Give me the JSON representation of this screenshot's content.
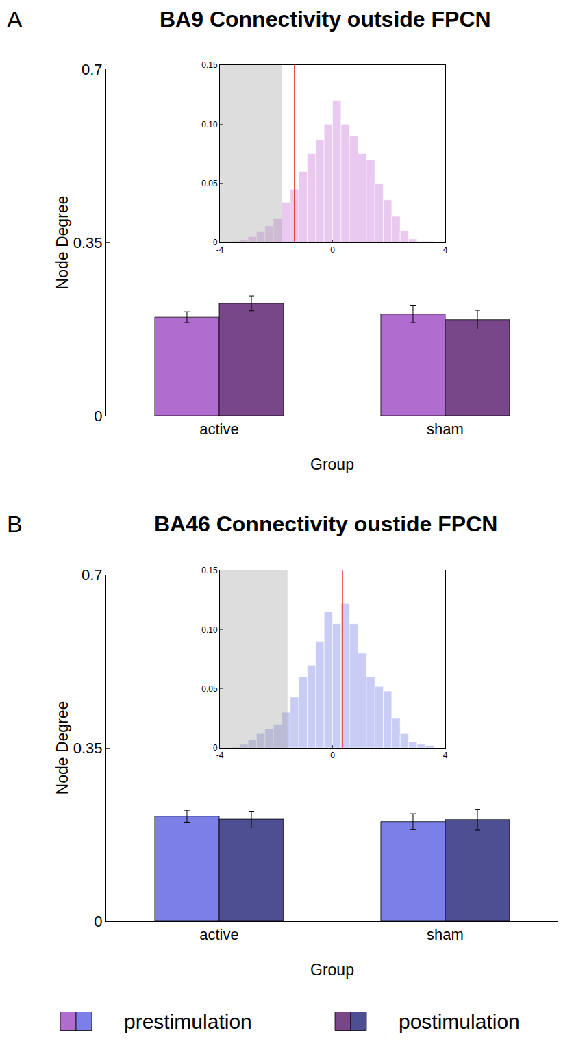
{
  "chart_data": [
    {
      "type": "bar",
      "panel": "A",
      "title": "BA9 Connectivity outside FPCN",
      "x_label": "Group",
      "y_label": "Node Degree",
      "categories": [
        "active",
        "sham"
      ],
      "ylim": [
        0,
        0.7
      ],
      "yticks": [
        0,
        0.35,
        0.7
      ],
      "legend": "bottom",
      "series": [
        {
          "name": "prestimulation",
          "color": "#b06ccf",
          "values": [
            0.199,
            0.205
          ],
          "errors": [
            0.011,
            0.017
          ]
        },
        {
          "name": "postimulation",
          "color": "#77478a",
          "values": [
            0.227,
            0.194
          ],
          "errors": [
            0.015,
            0.019
          ]
        }
      ],
      "inset": {
        "type": "histogram",
        "bins": [
          -3.6,
          -3.3,
          -3.0,
          -2.7,
          -2.4,
          -2.1,
          -1.8,
          -1.5,
          -1.2,
          -0.9,
          -0.6,
          -0.3,
          0,
          0.3,
          0.6,
          0.9,
          1.2,
          1.5,
          1.8,
          2.1,
          2.4,
          2.7,
          3.0,
          3.3,
          3.6
        ],
        "values": [
          0.001,
          0.002,
          0.005,
          0.009,
          0.014,
          0.02,
          0.034,
          0.045,
          0.06,
          0.075,
          0.087,
          0.1,
          0.12,
          0.1,
          0.09,
          0.075,
          0.07,
          0.05,
          0.036,
          0.022,
          0.01,
          0.003,
          0.001,
          0.001
        ],
        "color": "#e9c9ef",
        "xlim": [
          -4,
          4
        ],
        "xticks": [
          -4,
          0,
          4
        ],
        "ylim": [
          0,
          0.15
        ],
        "yticks": [
          0,
          0.05,
          {
            "value": 0.1,
            "label": "0.10"
          },
          0.15
        ],
        "critical_value": -1.8,
        "observed_value": -1.35,
        "observed_color": "#e3261f"
      }
    },
    {
      "type": "bar",
      "panel": "B",
      "title": "BA46 Connectivity oustide FPCN",
      "x_label": "Group",
      "y_label": "Node Degree",
      "categories": [
        "active",
        "sham"
      ],
      "ylim": [
        0,
        0.7
      ],
      "yticks": [
        0,
        0.35,
        0.7
      ],
      "legend": "bottom",
      "series": [
        {
          "name": "prestimulation",
          "color": "#7b7fe6",
          "values": [
            0.212,
            0.201
          ],
          "errors": [
            0.012,
            0.016
          ]
        },
        {
          "name": "postimulation",
          "color": "#4e4f92",
          "values": [
            0.206,
            0.205
          ],
          "errors": [
            0.016,
            0.021
          ]
        }
      ],
      "inset": {
        "type": "histogram",
        "bins": [
          -3.6,
          -3.3,
          -3.0,
          -2.7,
          -2.4,
          -2.1,
          -1.8,
          -1.5,
          -1.2,
          -0.9,
          -0.6,
          -0.3,
          0,
          0.3,
          0.6,
          0.9,
          1.2,
          1.5,
          1.8,
          2.1,
          2.4,
          2.7,
          3.0,
          3.3,
          3.6
        ],
        "values": [
          0.001,
          0.003,
          0.007,
          0.012,
          0.016,
          0.02,
          0.03,
          0.043,
          0.06,
          0.07,
          0.09,
          0.115,
          0.105,
          0.122,
          0.105,
          0.08,
          0.06,
          0.052,
          0.048,
          0.025,
          0.012,
          0.005,
          0.003,
          0.002
        ],
        "color": "#c9ccf4",
        "xlim": [
          -4,
          4
        ],
        "xticks": [
          -4,
          0,
          4
        ],
        "ylim": [
          0,
          0.15
        ],
        "yticks": [
          0,
          0.05,
          {
            "value": 0.1,
            "label": "0.10"
          },
          0.15
        ],
        "critical_value": -1.6,
        "observed_value": 0.35,
        "observed_color": "#e3261f"
      }
    }
  ]
}
